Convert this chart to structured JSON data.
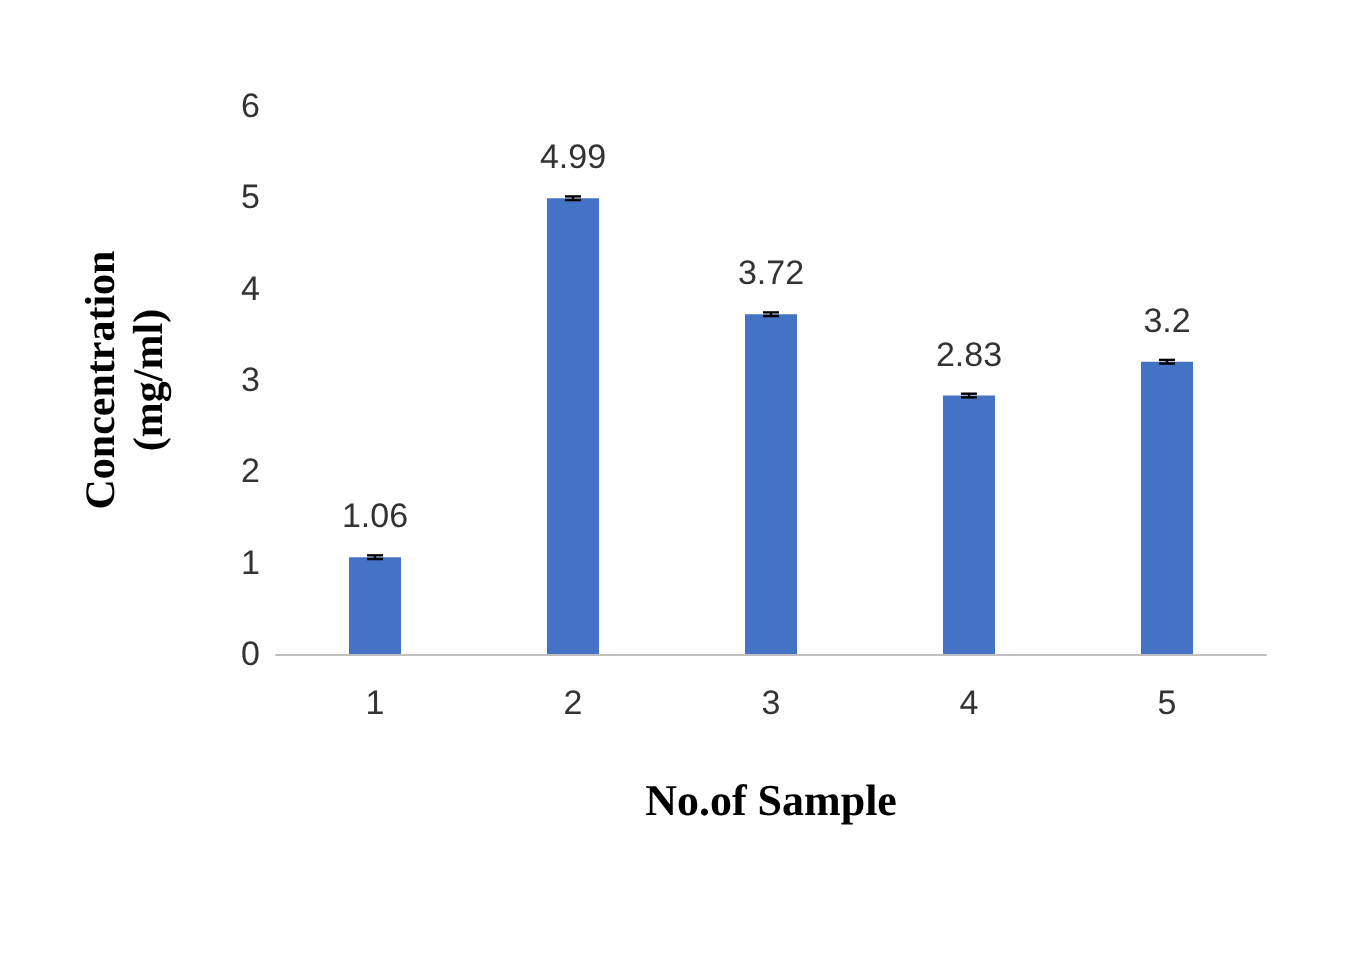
{
  "chart_data": {
    "type": "bar",
    "xlabel": "No.of Sample",
    "ylabel": "Concentration\n(mg/ml)",
    "categories": [
      "1",
      "2",
      "3",
      "4",
      "5"
    ],
    "values": [
      1.06,
      4.99,
      3.72,
      2.83,
      3.2
    ],
    "errors": [
      0.02,
      0.02,
      0.02,
      0.02,
      0.02
    ],
    "color": "#4472c4",
    "data_labels": true,
    "ylim": [
      0,
      6
    ],
    "yticks": [
      0,
      1,
      2,
      3,
      4,
      5,
      6
    ]
  }
}
